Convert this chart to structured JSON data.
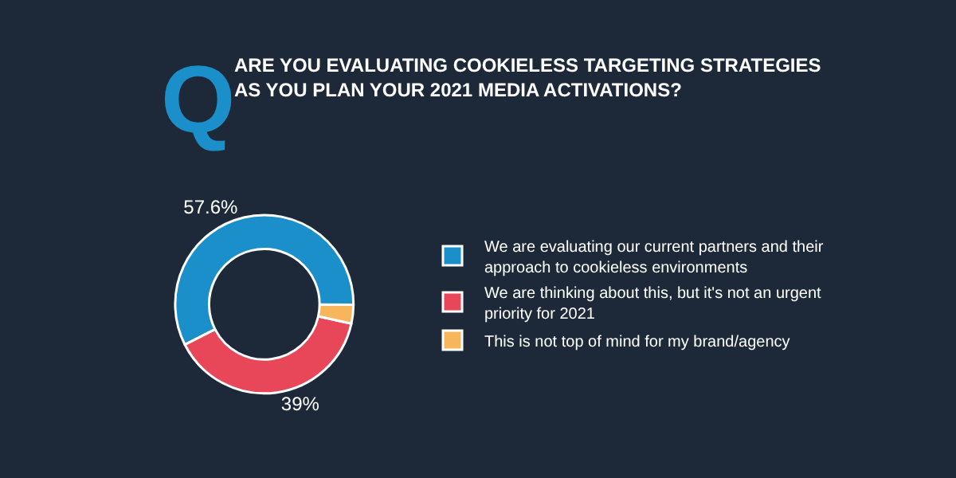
{
  "chart_data": {
    "type": "donut",
    "title": "ARE YOU EVALUATING COOKIELESS TARGETING STRATEGIES AS YOU PLAN YOUR 2021 MEDIA ACTIVATIONS?",
    "annotations": [
      "Q"
    ],
    "categories": [
      "We are evaluating our current partners and their approach to cookieless environments",
      "We are thinking about this, but it's not an urgent priority for 2021",
      "This is not top of mind for my brand/agency"
    ],
    "values": [
      57.6,
      39,
      3.4
    ],
    "value_labels": [
      "57.6%",
      "39%",
      null
    ],
    "colors": [
      "#1a8fc9",
      "#e8475a",
      "#f7b55c"
    ],
    "legend": "right"
  }
}
